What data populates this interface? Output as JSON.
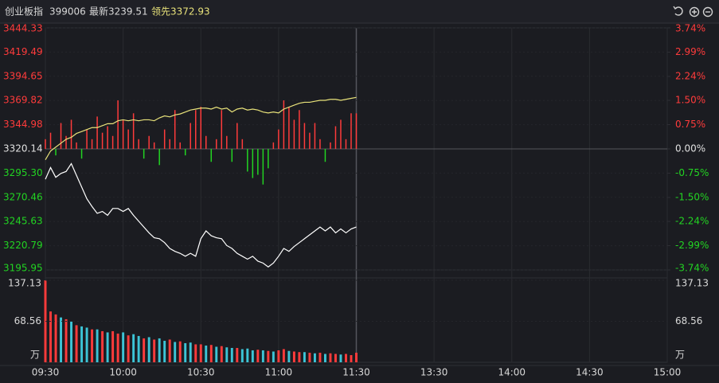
{
  "header": {
    "name": "创业板指",
    "code": "399006",
    "latest": "最新3239.51",
    "leading": "领先3372.93"
  },
  "chart_data": {
    "type": "intraday",
    "x": [
      0,
      2,
      4,
      6,
      8,
      10,
      12,
      14,
      16,
      18,
      20,
      22,
      24,
      26,
      28,
      30,
      32,
      34,
      36,
      38,
      40,
      42,
      44,
      46,
      48,
      50,
      52,
      54,
      56,
      58,
      60,
      62,
      64,
      66,
      68,
      70,
      72,
      74,
      76,
      78,
      80,
      82,
      84,
      86,
      88,
      90,
      92,
      94,
      96,
      98,
      100,
      102,
      104,
      106,
      108,
      110,
      112,
      114,
      116,
      118,
      120
    ],
    "xlim": [
      0,
      240
    ],
    "xticks": [
      {
        "value": 0,
        "label": "09:30"
      },
      {
        "value": 30,
        "label": "10:00"
      },
      {
        "value": 60,
        "label": "10:30"
      },
      {
        "value": 90,
        "label": "11:00"
      },
      {
        "value": 120,
        "label": "11:30"
      },
      {
        "value": 150,
        "label": "13:30"
      },
      {
        "value": 180,
        "label": "14:00"
      },
      {
        "value": 210,
        "label": "14:30"
      },
      {
        "value": 240,
        "label": "15:00"
      }
    ],
    "ylim": [
      3195.95,
      3444.33
    ],
    "yticks": [
      3444.33,
      3419.49,
      3394.65,
      3369.82,
      3344.98,
      3320.14,
      {
        "value": 3295.3,
        "label": "3295.30"
      },
      3270.46,
      3245.63,
      3220.79,
      3195.95
    ],
    "y2lim": [
      -3.74,
      3.74
    ],
    "y2ticks": [
      {
        "value": 3.74,
        "label": "3.74%"
      },
      {
        "value": 2.99,
        "label": "2.99%"
      },
      {
        "value": 2.24,
        "label": "2.24%"
      },
      {
        "value": 1.5,
        "label": "1.50%"
      },
      {
        "value": 0.75,
        "label": "0.75%"
      },
      {
        "value": 0,
        "label": "0.00%"
      },
      {
        "value": -0.75,
        "label": "-0.75%"
      },
      {
        "value": -1.5,
        "label": "-1.50%"
      },
      {
        "value": -2.24,
        "label": "-2.24%"
      },
      {
        "value": -2.99,
        "label": "-2.99%"
      },
      {
        "value": -3.74,
        "label": "-3.74%"
      }
    ],
    "up_color": "#ff3b3b",
    "down_color": "#22d422",
    "flat_color": "#e0e0e0",
    "series": [
      {
        "color": "#ffffff",
        "values": [
          3289,
          3301,
          3291,
          3295,
          3297,
          3305,
          3293,
          3281,
          3269,
          3261,
          3254,
          3256,
          3252,
          3259,
          3259,
          3256,
          3259,
          3252,
          3246,
          3240,
          3234,
          3229,
          3228,
          3224,
          3218,
          3215,
          3213,
          3210,
          3213,
          3210,
          3228,
          3236,
          3231,
          3229,
          3228,
          3221,
          3218,
          3213,
          3210,
          3207,
          3210,
          3205,
          3203,
          3199,
          3203,
          3210,
          3218,
          3215,
          3220,
          3224,
          3228,
          3232,
          3236,
          3240,
          3236,
          3240,
          3234,
          3238,
          3234,
          3238,
          3240
        ]
      },
      {
        "color": "#e8e27a",
        "values": [
          3309,
          3318,
          3322,
          3326,
          3330,
          3332,
          3336,
          3338,
          3340,
          3342,
          3342,
          3344,
          3346,
          3346,
          3349,
          3350,
          3349,
          3350,
          3349,
          3350,
          3350,
          3349,
          3352,
          3354,
          3353,
          3355,
          3356,
          3358,
          3360,
          3361,
          3362,
          3362,
          3361,
          3363,
          3361,
          3362,
          3358,
          3361,
          3362,
          3360,
          3361,
          3360,
          3358,
          3357,
          3358,
          3357,
          3361,
          3363,
          3365,
          3367,
          3368,
          3368,
          3369,
          3370,
          3370,
          3371,
          3371,
          3370,
          3371,
          3372,
          3373
        ]
      }
    ],
    "breadth": {
      "axis": "y2",
      "values": [
        0.3,
        0.5,
        -0.2,
        0.8,
        0.4,
        0.9,
        0.2,
        -0.3,
        0.6,
        0.3,
        1.0,
        0.5,
        0.7,
        0.4,
        1.5,
        0.9,
        0.6,
        1.1,
        0.3,
        -0.3,
        0.4,
        0.2,
        -0.5,
        0.6,
        0.3,
        1.2,
        0.2,
        -0.2,
        0.8,
        1.2,
        1.3,
        0.4,
        -0.4,
        0.3,
        1.2,
        0.4,
        -0.4,
        0.8,
        0.3,
        -0.7,
        -0.9,
        -0.8,
        -1.1,
        -0.6,
        0.2,
        0.6,
        1.5,
        1.3,
        0.9,
        1.2,
        0.8,
        0.5,
        0.8,
        0.3,
        -0.4,
        0.2,
        0.7,
        0.9,
        0.3,
        1.1,
        1.1
      ]
    },
    "volume": {
      "ylim": [
        0,
        137.13
      ],
      "yticks": [
        137.13,
        68.56
      ],
      "unit": "万",
      "values": [
        137,
        85,
        80,
        75,
        72,
        68,
        62,
        60,
        58,
        55,
        55,
        52,
        50,
        52,
        48,
        50,
        45,
        47,
        44,
        40,
        42,
        38,
        40,
        36,
        38,
        34,
        35,
        32,
        33,
        30,
        30,
        28,
        29,
        26,
        27,
        25,
        24,
        24,
        22,
        23,
        20,
        21,
        20,
        19,
        18,
        20,
        22,
        19,
        18,
        17,
        17,
        16,
        15,
        16,
        14,
        15,
        14,
        13,
        14,
        12,
        16
      ],
      "colors": [
        "#ff3b3b",
        "#ff3b3b",
        "#ff3b3b",
        "#3cc4d6",
        "#ff3b3b",
        "#3cc4d6",
        "#ff3b3b",
        "#3cc4d6",
        "#3cc4d6",
        "#ff3b3b",
        "#3cc4d6",
        "#ff3b3b",
        "#3cc4d6",
        "#ff3b3b",
        "#ff3b3b",
        "#3cc4d6",
        "#ff3b3b",
        "#3cc4d6",
        "#3cc4d6",
        "#ff3b3b",
        "#3cc4d6",
        "#ff3b3b",
        "#3cc4d6",
        "#3cc4d6",
        "#ff3b3b",
        "#3cc4d6",
        "#ff3b3b",
        "#3cc4d6",
        "#3cc4d6",
        "#ff3b3b",
        "#ff3b3b",
        "#3cc4d6",
        "#ff3b3b",
        "#3cc4d6",
        "#ff3b3b",
        "#3cc4d6",
        "#3cc4d6",
        "#ff3b3b",
        "#3cc4d6",
        "#3cc4d6",
        "#3cc4d6",
        "#ff3b3b",
        "#3cc4d6",
        "#ff3b3b",
        "#3cc4d6",
        "#ff3b3b",
        "#ff3b3b",
        "#3cc4d6",
        "#ff3b3b",
        "#ff3b3b",
        "#3cc4d6",
        "#ff3b3b",
        "#3cc4d6",
        "#ff3b3b",
        "#3cc4d6",
        "#ff3b3b",
        "#ff3b3b",
        "#3cc4d6",
        "#ff3b3b",
        "#ff3b3b",
        "#ff3b3b"
      ]
    }
  }
}
